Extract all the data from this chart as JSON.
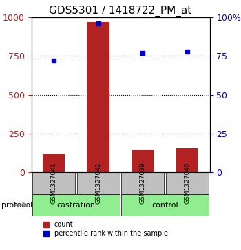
{
  "title": "GDS5301 / 1418722_PM_at",
  "samples": [
    "GSM1327041",
    "GSM1327042",
    "GSM1327039",
    "GSM1327040"
  ],
  "bar_values": [
    120,
    970,
    140,
    155
  ],
  "percentile_values": [
    72,
    96,
    77,
    78
  ],
  "bar_color": "#b22222",
  "marker_color": "#0000cd",
  "left_ylim": [
    0,
    1000
  ],
  "right_ylim": [
    0,
    100
  ],
  "left_yticks": [
    0,
    250,
    500,
    750,
    1000
  ],
  "right_yticks": [
    0,
    25,
    50,
    75,
    100
  ],
  "left_yticklabels": [
    "0",
    "250",
    "500",
    "750",
    "1000"
  ],
  "right_yticklabels": [
    "0",
    "25",
    "50",
    "75",
    "100%"
  ],
  "groups": [
    {
      "label": "castration",
      "indices": [
        0,
        1
      ],
      "color": "#90ee90"
    },
    {
      "label": "control",
      "indices": [
        2,
        3
      ],
      "color": "#90ee90"
    }
  ],
  "protocol_label": "protocol",
  "legend_items": [
    {
      "label": "count",
      "color": "#b22222",
      "marker": "s"
    },
    {
      "label": "percentile rank within the sample",
      "color": "#0000cd",
      "marker": "s"
    }
  ],
  "background_color": "#ffffff",
  "plot_bg_color": "#ffffff",
  "grid_color": "#000000",
  "sample_box_color": "#c0c0c0",
  "title_fontsize": 11,
  "tick_fontsize": 9,
  "label_fontsize": 9
}
